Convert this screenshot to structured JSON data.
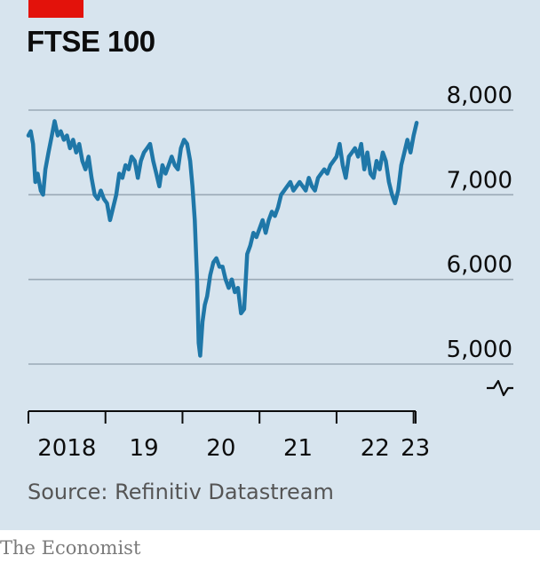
{
  "header": {
    "title": "FTSE 100"
  },
  "source": "Source: Refinitiv Datastream",
  "publisher": "The Economist",
  "colors": {
    "accent": "#e3120b",
    "line": "#1f77a8",
    "background": "#d7e4ee",
    "grid": "#9aa9b5"
  },
  "chart_data": {
    "type": "line",
    "title": "FTSE 100",
    "xlabel": "",
    "ylabel": "",
    "ylim": [
      5000,
      8000
    ],
    "yticks": [
      5000,
      6000,
      7000,
      8000
    ],
    "ytick_labels": [
      "5,000",
      "6,000",
      "7,000",
      "8,000"
    ],
    "y_axis_break": true,
    "grid": "horizontal",
    "x_tick_years": [
      2018,
      2019,
      2020,
      2021,
      2022,
      2023
    ],
    "x_tick_labels": [
      "2018",
      "19",
      "20",
      "21",
      "22",
      "23"
    ],
    "x_range": [
      2018.0,
      2023.05
    ],
    "series": [
      {
        "x": [
          2018.0,
          2018.03,
          2018.06,
          2018.09,
          2018.12,
          2018.16,
          2018.19,
          2018.22,
          2018.26,
          2018.3,
          2018.34,
          2018.38,
          2018.42,
          2018.46,
          2018.5,
          2018.54,
          2018.58,
          2018.62,
          2018.66,
          2018.7,
          2018.74,
          2018.78,
          2018.82,
          2018.86,
          2018.9,
          2018.94,
          2018.98,
          2019.02,
          2019.06,
          2019.1,
          2019.14,
          2019.18,
          2019.22,
          2019.26,
          2019.3,
          2019.34,
          2019.38,
          2019.42,
          2019.46,
          2019.5,
          2019.54,
          2019.58,
          2019.62,
          2019.66,
          2019.7,
          2019.74,
          2019.78,
          2019.82,
          2019.86,
          2019.9,
          2019.94,
          2019.98,
          2020.02,
          2020.06,
          2020.1,
          2020.13,
          2020.16,
          2020.19,
          2020.21,
          2020.23,
          2020.26,
          2020.29,
          2020.32,
          2020.36,
          2020.4,
          2020.44,
          2020.48,
          2020.52,
          2020.56,
          2020.6,
          2020.64,
          2020.68,
          2020.72,
          2020.76,
          2020.8,
          2020.84,
          2020.88,
          2020.92,
          2020.96,
          2021.0,
          2021.04,
          2021.08,
          2021.12,
          2021.16,
          2021.2,
          2021.24,
          2021.28,
          2021.32,
          2021.36,
          2021.4,
          2021.44,
          2021.48,
          2021.52,
          2021.56,
          2021.6,
          2021.64,
          2021.68,
          2021.72,
          2021.76,
          2021.8,
          2021.84,
          2021.88,
          2021.92,
          2021.96,
          2022.0,
          2022.04,
          2022.08,
          2022.12,
          2022.16,
          2022.2,
          2022.24,
          2022.28,
          2022.32,
          2022.36,
          2022.4,
          2022.44,
          2022.48,
          2022.52,
          2022.56,
          2022.6,
          2022.64,
          2022.68,
          2022.72,
          2022.76,
          2022.8,
          2022.84,
          2022.88,
          2022.92,
          2022.96,
          2023.0,
          2023.04
        ],
        "y": [
          7700,
          7750,
          7600,
          7150,
          7250,
          7050,
          7000,
          7300,
          7500,
          7680,
          7870,
          7700,
          7750,
          7650,
          7700,
          7550,
          7650,
          7500,
          7600,
          7400,
          7300,
          7450,
          7200,
          7000,
          6950,
          7050,
          6950,
          6900,
          6700,
          6850,
          7000,
          7250,
          7200,
          7350,
          7300,
          7450,
          7400,
          7200,
          7400,
          7500,
          7550,
          7600,
          7400,
          7250,
          7100,
          7350,
          7250,
          7350,
          7450,
          7350,
          7300,
          7550,
          7650,
          7600,
          7400,
          7100,
          6700,
          6000,
          5250,
          5100,
          5500,
          5700,
          5800,
          6050,
          6200,
          6250,
          6150,
          6150,
          6000,
          5900,
          6000,
          5850,
          5900,
          5600,
          5650,
          6300,
          6400,
          6550,
          6500,
          6600,
          6700,
          6550,
          6700,
          6800,
          6750,
          6850,
          7000,
          7050,
          7100,
          7150,
          7050,
          7100,
          7150,
          7100,
          7050,
          7200,
          7100,
          7050,
          7200,
          7250,
          7300,
          7250,
          7350,
          7400,
          7450,
          7600,
          7350,
          7200,
          7450,
          7500,
          7550,
          7450,
          7600,
          7300,
          7500,
          7250,
          7200,
          7400,
          7300,
          7500,
          7400,
          7150,
          7000,
          6900,
          7050,
          7350,
          7500,
          7650,
          7500,
          7700,
          7850
        ]
      }
    ]
  }
}
